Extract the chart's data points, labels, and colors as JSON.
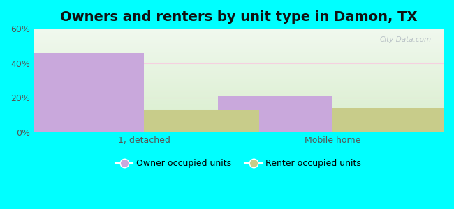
{
  "title": "Owners and renters by unit type in Damon, TX",
  "categories": [
    "1, detached",
    "Mobile home"
  ],
  "owner_values": [
    46.0,
    21.0
  ],
  "renter_values": [
    13.0,
    14.0
  ],
  "owner_color": "#c9a8dc",
  "renter_color": "#c8cc8a",
  "owner_label": "Owner occupied units",
  "renter_label": "Renter occupied units",
  "ylim": [
    0,
    60
  ],
  "yticks": [
    0,
    20,
    40,
    60
  ],
  "yticklabels": [
    "0%",
    "20%",
    "40%",
    "60%"
  ],
  "bar_width": 0.28,
  "background_outer": "#00ffff",
  "grad_top": "#f0f8ee",
  "grad_bottom": "#d8edcc",
  "watermark": "City-Data.com",
  "title_fontsize": 14,
  "tick_fontsize": 9,
  "legend_fontsize": 9,
  "grid_color": "#f5d0e0",
  "group_centers": [
    0.27,
    0.73
  ]
}
